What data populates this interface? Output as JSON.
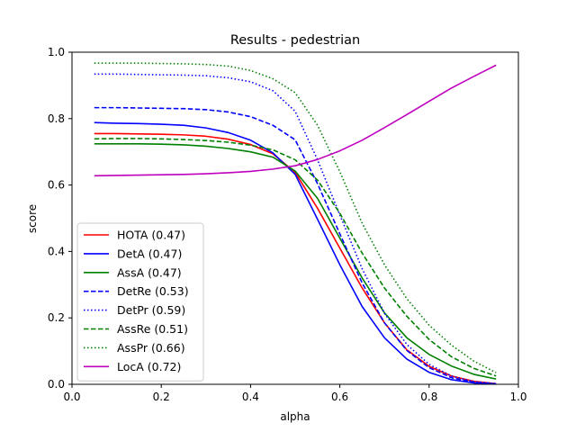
{
  "chart_data": {
    "type": "line",
    "title": "Results - pedestrian",
    "xlabel": "alpha",
    "ylabel": "score",
    "xlim": [
      0.0,
      1.0
    ],
    "ylim": [
      0.0,
      1.0
    ],
    "xticks": [
      "0.0",
      "0.2",
      "0.4",
      "0.6",
      "0.8",
      "1.0"
    ],
    "yticks": [
      "0.0",
      "0.2",
      "0.4",
      "0.6",
      "0.8",
      "1.0"
    ],
    "grid": false,
    "legend_position": "lower-left",
    "x": [
      0.05,
      0.1,
      0.15,
      0.2,
      0.25,
      0.3,
      0.35,
      0.4,
      0.45,
      0.5,
      0.55,
      0.6,
      0.65,
      0.7,
      0.75,
      0.8,
      0.85,
      0.9,
      0.95
    ],
    "series": [
      {
        "name": "HOTA (0.47)",
        "color": "#ff0000",
        "style": "solid",
        "values": [
          0.755,
          0.755,
          0.754,
          0.753,
          0.751,
          0.747,
          0.738,
          0.722,
          0.694,
          0.638,
          0.53,
          0.41,
          0.29,
          0.185,
          0.104,
          0.054,
          0.025,
          0.009,
          0.002
        ]
      },
      {
        "name": "DetA (0.47)",
        "color": "#0000ff",
        "style": "solid",
        "values": [
          0.788,
          0.786,
          0.785,
          0.783,
          0.78,
          0.772,
          0.758,
          0.735,
          0.697,
          0.632,
          0.497,
          0.36,
          0.234,
          0.14,
          0.076,
          0.036,
          0.014,
          0.004,
          0.001
        ]
      },
      {
        "name": "AssA (0.47)",
        "color": "#008000",
        "style": "solid",
        "values": [
          0.724,
          0.724,
          0.724,
          0.723,
          0.721,
          0.717,
          0.71,
          0.7,
          0.684,
          0.642,
          0.56,
          0.44,
          0.32,
          0.215,
          0.14,
          0.09,
          0.055,
          0.03,
          0.016
        ]
      },
      {
        "name": "DetRe (0.53)",
        "color": "#0000ff",
        "style": "dashed",
        "values": [
          0.833,
          0.833,
          0.832,
          0.831,
          0.83,
          0.827,
          0.82,
          0.806,
          0.78,
          0.736,
          0.604,
          0.453,
          0.305,
          0.185,
          0.102,
          0.05,
          0.02,
          0.006,
          0.001
        ]
      },
      {
        "name": "DetPr (0.59)",
        "color": "#0000ff",
        "style": "dotted",
        "values": [
          0.934,
          0.934,
          0.933,
          0.932,
          0.931,
          0.929,
          0.923,
          0.911,
          0.884,
          0.822,
          0.676,
          0.51,
          0.348,
          0.214,
          0.12,
          0.06,
          0.025,
          0.008,
          0.002
        ]
      },
      {
        "name": "AssRe (0.51)",
        "color": "#008000",
        "style": "dashed",
        "values": [
          0.739,
          0.74,
          0.74,
          0.739,
          0.737,
          0.734,
          0.729,
          0.72,
          0.706,
          0.676,
          0.615,
          0.515,
          0.395,
          0.29,
          0.205,
          0.135,
          0.083,
          0.048,
          0.025
        ]
      },
      {
        "name": "AssPr (0.66)",
        "color": "#008000",
        "style": "dotted",
        "values": [
          0.967,
          0.967,
          0.967,
          0.966,
          0.965,
          0.963,
          0.958,
          0.945,
          0.92,
          0.878,
          0.78,
          0.64,
          0.485,
          0.36,
          0.258,
          0.178,
          0.118,
          0.07,
          0.035
        ]
      },
      {
        "name": "LocA (0.72)",
        "color": "#bf00bf",
        "style": "solid",
        "values": [
          0.628,
          0.629,
          0.63,
          0.631,
          0.632,
          0.634,
          0.637,
          0.641,
          0.648,
          0.658,
          0.677,
          0.703,
          0.735,
          0.773,
          0.812,
          0.852,
          0.892,
          0.927,
          0.961
        ]
      }
    ]
  }
}
